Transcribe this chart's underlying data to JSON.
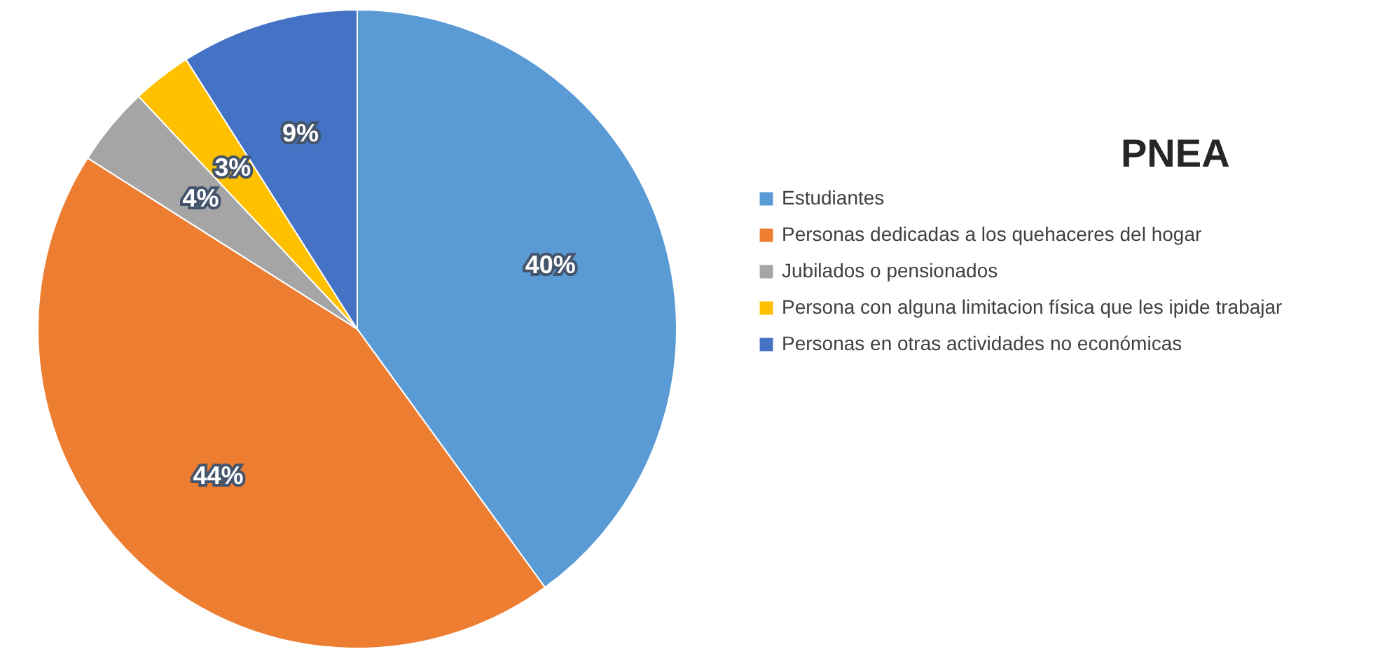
{
  "chart_data": {
    "type": "pie",
    "title": "PNEA",
    "categories": [
      "Estudiantes",
      "Personas dedicadas a los quehaceres del hogar",
      "Jubilados o pensionados",
      "Persona con alguna limitacion física que les ipide trabajar",
      "Personas en otras actividades no económicas"
    ],
    "values": [
      40,
      44,
      4,
      3,
      9
    ],
    "value_labels": [
      "40%",
      "44%",
      "4%",
      "3%",
      "9%"
    ],
    "colors": [
      "#5b9bd5",
      "#ed7d31",
      "#a5a5a5",
      "#ffc000",
      "#4472c4"
    ],
    "legend": "right"
  }
}
